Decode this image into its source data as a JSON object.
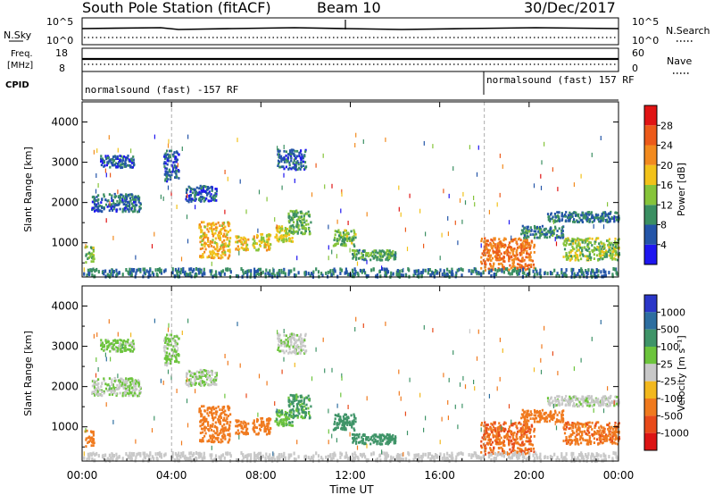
{
  "header": {
    "title": "South Pole Station (fitACF)",
    "beam": "Beam 10",
    "date": "30/Dec/2017"
  },
  "panels": {
    "nsky": {
      "label": "N.Sky",
      "ticks": [
        "10^5",
        "10^0"
      ]
    },
    "nsearch": {
      "label": "N.Search",
      "ticks": [
        "10^5",
        "10^0"
      ]
    },
    "freq": {
      "label_line1": "Freq.",
      "label_line2": "[MHz]",
      "ticks": [
        "18",
        "8"
      ]
    },
    "nave": {
      "label": "Nave",
      "ticks": [
        "60",
        "0"
      ]
    },
    "cpid": {
      "label": "CPID",
      "segments": [
        {
          "text": "normalsound (fast) -157 RF",
          "start_hour": 0,
          "end_hour": 18
        },
        {
          "text": "normalsound (fast) 157 RF",
          "start_hour": 18,
          "end_hour": 24
        }
      ]
    }
  },
  "axes": {
    "xlabel": "Time UT",
    "x_ticks": [
      "00:00",
      "04:00",
      "08:00",
      "12:00",
      "16:00",
      "20:00",
      "00:00"
    ],
    "ylabel": "Slant Range [km]",
    "y_ticks": [
      "1000",
      "2000",
      "3000",
      "4000"
    ],
    "ylim": [
      150,
      4500
    ],
    "xlim": [
      0,
      24
    ]
  },
  "colorbars": {
    "power": {
      "label": "Power [dB]",
      "ticks": [
        "4",
        "8",
        "12",
        "16",
        "20",
        "24",
        "28"
      ],
      "colors": [
        "#1e16f0",
        "#2455a8",
        "#3b8f62",
        "#86c43a",
        "#f2c21a",
        "#f28a1e",
        "#ec5a1a",
        "#e01414"
      ]
    },
    "velocity": {
      "label": "Velocity [m s⁻¹]",
      "ticks": [
        "1000",
        "500",
        "100",
        "25",
        "-25",
        "-100",
        "-500",
        "-1000"
      ],
      "colors": [
        "#2a36c8",
        "#2d6ea0",
        "#3f9468",
        "#6cc43c",
        "#c8c8c8",
        "#f2b81e",
        "#f07a1e",
        "#e84a1a",
        "#dc1414"
      ]
    }
  },
  "chart_data": {
    "type": "heatmap",
    "title": "South Pole Station (fitACF)",
    "xlabel": "Time UT",
    "ylabel": "Slant Range [km]",
    "xlim": [
      0,
      24
    ],
    "ylim": [
      150,
      4500
    ],
    "blobs": [
      {
        "t0": 0.1,
        "t1": 0.5,
        "r0": 500,
        "r1": 900,
        "p": 14,
        "v": -200
      },
      {
        "t0": 0.4,
        "t1": 2.6,
        "r0": 1750,
        "r1": 2200,
        "p": 7,
        "v": 20
      },
      {
        "t0": 0.8,
        "t1": 2.3,
        "r0": 2850,
        "r1": 3150,
        "p": 6,
        "v": 40
      },
      {
        "t0": 3.6,
        "t1": 4.3,
        "r0": 2500,
        "r1": 3300,
        "p": 6,
        "v": 30
      },
      {
        "t0": 4.6,
        "t1": 6.0,
        "r0": 2000,
        "r1": 2400,
        "p": 6,
        "v": 20
      },
      {
        "t0": 5.2,
        "t1": 6.6,
        "r0": 600,
        "r1": 1500,
        "p": 19,
        "v": -220
      },
      {
        "t0": 6.8,
        "t1": 7.4,
        "r0": 800,
        "r1": 1150,
        "p": 19,
        "v": -260
      },
      {
        "t0": 7.6,
        "t1": 8.4,
        "r0": 800,
        "r1": 1200,
        "p": 17,
        "v": -300
      },
      {
        "t0": 8.6,
        "t1": 9.4,
        "r0": 1000,
        "r1": 1400,
        "p": 16,
        "v": 80
      },
      {
        "t0": 9.2,
        "t1": 10.2,
        "r0": 1200,
        "r1": 1800,
        "p": 12,
        "v": 120
      },
      {
        "t0": 8.7,
        "t1": 10.0,
        "r0": 2800,
        "r1": 3300,
        "p": 6,
        "v": 10
      },
      {
        "t0": 11.2,
        "t1": 12.2,
        "r0": 900,
        "r1": 1300,
        "p": 13,
        "v": 350
      },
      {
        "t0": 12.0,
        "t1": 14.0,
        "r0": 550,
        "r1": 800,
        "p": 11,
        "v": 180
      },
      {
        "t0": 17.8,
        "t1": 20.2,
        "r0": 300,
        "r1": 1100,
        "p": 24,
        "v": -450
      },
      {
        "t0": 19.6,
        "t1": 21.5,
        "r0": 1100,
        "r1": 1400,
        "p": 9,
        "v": -300
      },
      {
        "t0": 20.8,
        "t1": 24.0,
        "r0": 1500,
        "r1": 1750,
        "p": 8,
        "v": 5
      },
      {
        "t0": 21.5,
        "t1": 24.0,
        "r0": 550,
        "r1": 1100,
        "p": 14,
        "v": -400
      },
      {
        "t0": 0.0,
        "t1": 24.0,
        "r0": 150,
        "r1": 350,
        "p": 8,
        "v": 10
      }
    ]
  }
}
